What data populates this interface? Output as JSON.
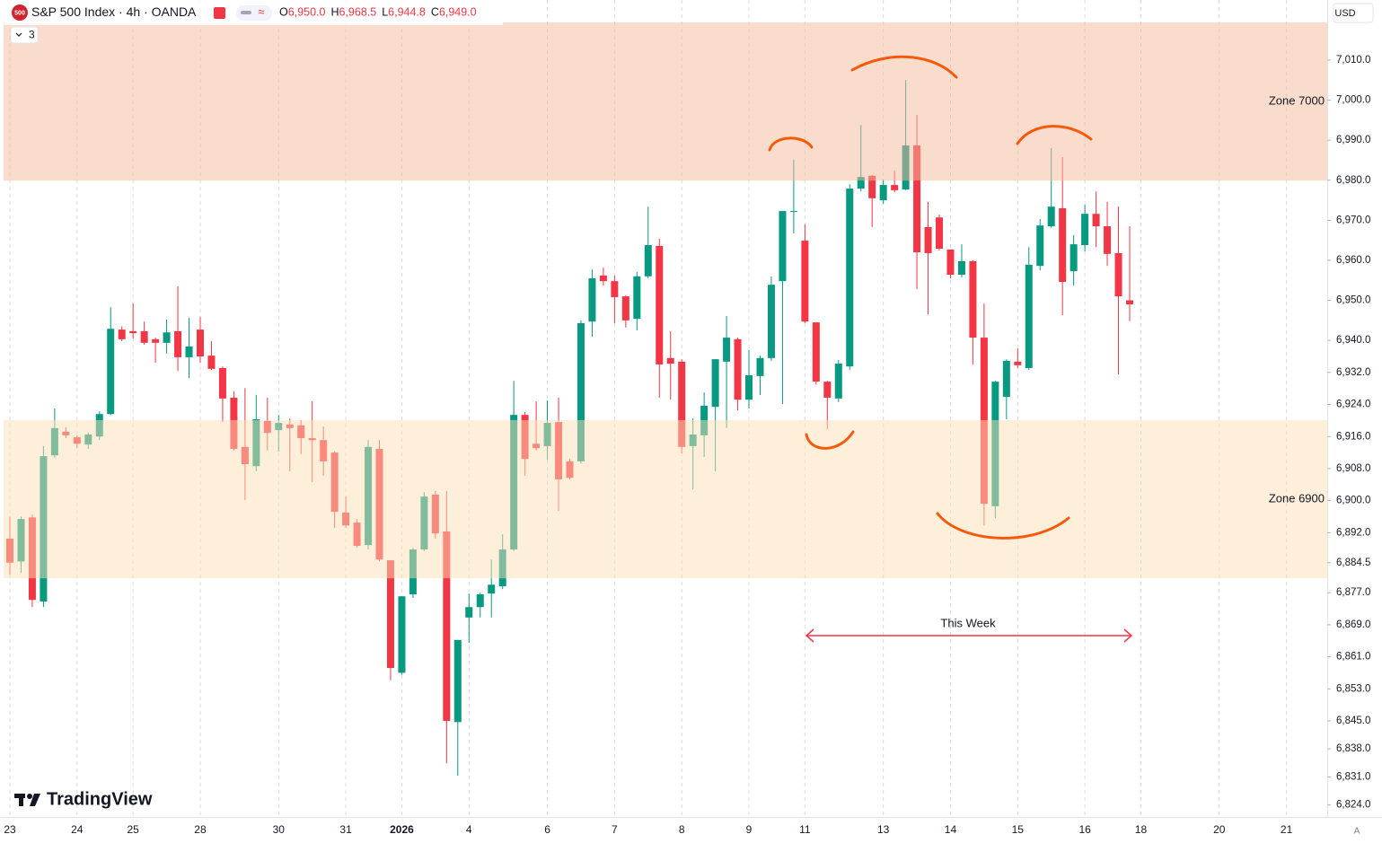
{
  "ui": {
    "logo": "500",
    "ohlc": [
      {
        "key": "O",
        "value": "6,950.0"
      },
      {
        "key": "H",
        "value": "6,968.5"
      },
      {
        "key": "L",
        "value": "6,944.8"
      },
      {
        "key": "C",
        "value": "6,949.0"
      }
    ],
    "indicators": "3",
    "currency": "USD",
    "brand": "TradingView",
    "scale_mode": "A",
    "annotation": "This Week"
  },
  "chart_data": {
    "type": "candlestick",
    "title": "S&P 500 Index · 4h · OANDA",
    "categories": [
      "23",
      null,
      null,
      null,
      null,
      null,
      "24",
      null,
      null,
      null,
      null,
      "25",
      null,
      null,
      null,
      null,
      null,
      "28",
      null,
      null,
      null,
      null,
      null,
      null,
      "30",
      null,
      null,
      null,
      null,
      null,
      "31",
      null,
      null,
      null,
      null,
      "2026",
      null,
      null,
      null,
      null,
      null,
      "4",
      null,
      null,
      null,
      null,
      null,
      null,
      "6",
      null,
      null,
      null,
      null,
      null,
      "7",
      null,
      null,
      null,
      null,
      null,
      "8",
      null,
      null,
      null,
      null,
      null,
      "9",
      null,
      null,
      null,
      null,
      "11",
      null,
      null,
      null,
      null,
      null,
      null,
      "13",
      null,
      null,
      null,
      null,
      null,
      "14",
      null,
      null,
      null,
      null,
      null,
      "15",
      null,
      null,
      null,
      null,
      null,
      "16",
      null,
      null,
      null,
      null,
      "18",
      null,
      null,
      null,
      null,
      null,
      null,
      "20",
      null,
      null,
      null,
      null,
      null,
      "21"
    ],
    "open": [
      6890.5,
      6884.8,
      6895.8,
      6874.8,
      6911.3,
      6917.2,
      6915.8,
      6914.0,
      6916.0,
      6921.6,
      6942.7,
      6942.3,
      6942.3,
      6940.3,
      6939.4,
      6942.3,
      6935.8,
      6942.7,
      6936.2,
      6933.1,
      6925.7,
      6913.4,
      6908.6,
      6919.9,
      6917.6,
      6919.0,
      6918.8,
      6915.6,
      6915.1,
      6912.0,
      6897.0,
      6894.5,
      6888.9,
      6912.9,
      6885.1,
      6857.0,
      6876.6,
      6887.8,
      6901.5,
      6892.3,
      6844.7,
      6870.8,
      6873.4,
      6876.8,
      6878.6,
      6887.8,
      6921.4,
      6914.2,
      6913.6,
      6919.6,
      6909.8,
      6909.8,
      6944.7,
      6956.2,
      6954.8,
      6951.0,
      6945.4,
      6956.0,
      6963.6,
      6935.6,
      6934.7,
      6913.6,
      6916.3,
      6923.4,
      6934.7,
      6940.3,
      6925.2,
      6931.1,
      6935.6,
      6954.8,
      6972.1,
      6964.9,
      6944.5,
      6929.7,
      6925.5,
      6933.5,
      6977.9,
      6981.1,
      6975.0,
      6978.8,
      6977.7,
      6988.7,
      6968.3,
      6970.7,
      6962.7,
      6956.4,
      6959.8,
      6940.7,
      6898.6,
      6925.9,
      6934.7,
      6933.1,
      6958.6,
      6968.5,
      6973.0,
      6957.3,
      6963.8,
      6971.6,
      6968.5,
      6961.8,
      6950.0,
      null,
      null,
      null,
      null,
      null,
      null,
      null,
      null,
      null,
      null,
      null,
      null,
      null,
      null
    ],
    "high": [
      6896,
      6896,
      6896.5,
      6913.6,
      6923,
      6918.3,
      6916.3,
      6917,
      6922.3,
      6948.3,
      6943.5,
      6949.2,
      6944.7,
      6940.7,
      6945.2,
      6953.5,
      6945.6,
      6945.9,
      6939.8,
      6933.5,
      6927.3,
      6928.1,
      6926.4,
      6925.7,
      6921.4,
      6920.5,
      6920.1,
      6924.8,
      6918.5,
      6912.3,
      6901,
      6895.4,
      6915.1,
      6915.1,
      6885.1,
      6876.1,
      6888.2,
      6902.1,
      6902.4,
      6902.4,
      6865.2,
      6876.8,
      6877,
      6885.3,
      6891.6,
      6929.9,
      6922.1,
      6924.8,
      6925,
      6925.7,
      6910.4,
      6945,
      6957.7,
      6958.2,
      6956.2,
      6951.3,
      6957.1,
      6973.4,
      6965.4,
      6942.3,
      6935.3,
      6920.5,
      6927,
      6935.3,
      6946.1,
      6940.7,
      6937.6,
      6936.2,
      6956,
      6972.3,
      6985.1,
      6969,
      6944.5,
      6929.9,
      6935.1,
      6979,
      6993.8,
      6981.3,
      6980.2,
      6982.4,
      7005,
      6996.3,
      6974.6,
      6971.4,
      6962.7,
      6964,
      6960,
      6949.2,
      6929.9,
      6935.3,
      6938,
      6963.3,
      6970.3,
      6988,
      6985.8,
      6966.3,
      6973.9,
      6977.2,
      6974.6,
      6973.4,
      6968.5,
      null,
      null,
      null,
      null,
      null,
      null,
      null,
      null,
      null,
      null,
      null,
      null,
      null,
      null
    ],
    "low": [
      6881.5,
      6882,
      6873.4,
      6873.4,
      6910.7,
      6915.6,
      6913.1,
      6912.9,
      6915.1,
      6921.4,
      6939.8,
      6940.5,
      6938.9,
      6934.4,
      6936.7,
      6932.4,
      6930.6,
      6934.4,
      6932.6,
      6919.6,
      6912.5,
      6900.1,
      6907.3,
      6912.5,
      6912.2,
      6907.3,
      6911.6,
      6904.6,
      6906.2,
      6893.2,
      6893.2,
      6888.2,
      6887.8,
      6884.9,
      6855.1,
      6856.5,
      6875.7,
      6887.4,
      6890.5,
      6834.4,
      6831.3,
      6864.5,
      6870.8,
      6870.8,
      6877.9,
      6887.4,
      6906.2,
      6912.5,
      6910.2,
      6897.4,
      6905.3,
      6909.3,
      6940.9,
      6953.7,
      6944.3,
      6943.2,
      6942.5,
      6955.5,
      6925.7,
      6925.2,
      6911.8,
      6902.8,
      6910.9,
      6907.3,
      6918.1,
      6922.5,
      6923,
      6926.4,
      6934.9,
      6924.1,
      6966.7,
      6944.3,
      6929,
      6917.8,
      6924.6,
      6932.6,
      6977.2,
      6968.3,
      6974.1,
      6977,
      6977.5,
      6952.8,
      6946.5,
      6962.5,
      6955.5,
      6955.7,
      6934,
      6893.8,
      6895.6,
      6920.3,
      6933.1,
      6932.6,
      6957.5,
      6968.1,
      6946.3,
      6953.7,
      6962.2,
      6963.3,
      6958.6,
      6931.5,
      6944.8,
      null,
      null,
      null,
      null,
      null,
      null,
      null,
      null,
      null,
      null,
      null,
      null,
      null,
      null
    ],
    "close": [
      6884.5,
      6895.4,
      6875.2,
      6911.1,
      6918.1,
      6916.3,
      6914.2,
      6916.5,
      6921.6,
      6942.9,
      6940.3,
      6941.8,
      6939.4,
      6939.4,
      6942.0,
      6935.8,
      6938.5,
      6936.0,
      6932.9,
      6925.5,
      6912.9,
      6909.1,
      6920.3,
      6916.9,
      6919.4,
      6918.1,
      6915.6,
      6915.1,
      6909.8,
      6897.2,
      6893.8,
      6888.7,
      6913.4,
      6885.3,
      6858.2,
      6876.1,
      6887.8,
      6901.0,
      6891.8,
      6845.0,
      6865.2,
      6873.4,
      6876.6,
      6879.0,
      6887.8,
      6921.4,
      6910.4,
      6913.1,
      6919.4,
      6905.3,
      6905.7,
      6944.3,
      6955.5,
      6954.8,
      6950.8,
      6945.0,
      6956.0,
      6963.8,
      6934.0,
      6934.2,
      6913.4,
      6916.5,
      6923.7,
      6935.3,
      6940.7,
      6925.2,
      6931.3,
      6935.6,
      6953.9,
      6972.3,
      6972.3,
      6944.7,
      6929.7,
      6925.7,
      6934.2,
      6977.9,
      6980.8,
      6975.5,
      6978.8,
      6977.5,
      6988.7,
      6962.0,
      6961.8,
      6962.9,
      6956.4,
      6959.8,
      6940.7,
      6899.2,
      6929.7,
      6934.9,
      6933.8,
      6958.9,
      6968.7,
      6973.4,
      6954.6,
      6964.0,
      6971.6,
      6968.5,
      6961.6,
      6951.0,
      6949.0,
      null,
      null,
      null,
      null,
      null,
      null,
      null,
      null,
      null,
      null,
      null,
      null,
      null,
      null
    ],
    "up_color": "#089981",
    "down_color": "#f23645",
    "ylim": [
      6821,
      7025
    ],
    "yticks": [
      {
        "value": 7010,
        "label": "7,010.0"
      },
      {
        "value": 7000,
        "label": "7,000.0"
      },
      {
        "value": 6990,
        "label": "6,990.0"
      },
      {
        "value": 6980,
        "label": "6,980.0"
      },
      {
        "value": 6970,
        "label": "6,970.0"
      },
      {
        "value": 6960,
        "label": "6,960.0"
      },
      {
        "value": 6950,
        "label": "6,950.0"
      },
      {
        "value": 6940,
        "label": "6,940.0"
      },
      {
        "value": 6932,
        "label": "6,932.0"
      },
      {
        "value": 6924,
        "label": "6,924.0"
      },
      {
        "value": 6916,
        "label": "6,916.0"
      },
      {
        "value": 6908,
        "label": "6,908.0"
      },
      {
        "value": 6900,
        "label": "6,900.0"
      },
      {
        "value": 6892,
        "label": "6,892.0"
      },
      {
        "value": 6884.5,
        "label": "6,884.5"
      },
      {
        "value": 6877,
        "label": "6,877.0"
      },
      {
        "value": 6869,
        "label": "6,869.0"
      },
      {
        "value": 6861,
        "label": "6,861.0"
      },
      {
        "value": 6853,
        "label": "6,853.0"
      },
      {
        "value": 6845,
        "label": "6,845.0"
      },
      {
        "value": 6838,
        "label": "6,838.0"
      },
      {
        "value": 6831,
        "label": "6,831.0"
      },
      {
        "value": 6824,
        "label": "6,824.0"
      }
    ],
    "zones": [
      {
        "label": "Zone 7000",
        "range": [
          7019.4,
          6979.9
        ],
        "color": "#f5b99c"
      },
      {
        "label": "Zone 6900",
        "range": [
          6920.1,
          6880.6
        ],
        "color": "#fde0b8"
      }
    ]
  }
}
